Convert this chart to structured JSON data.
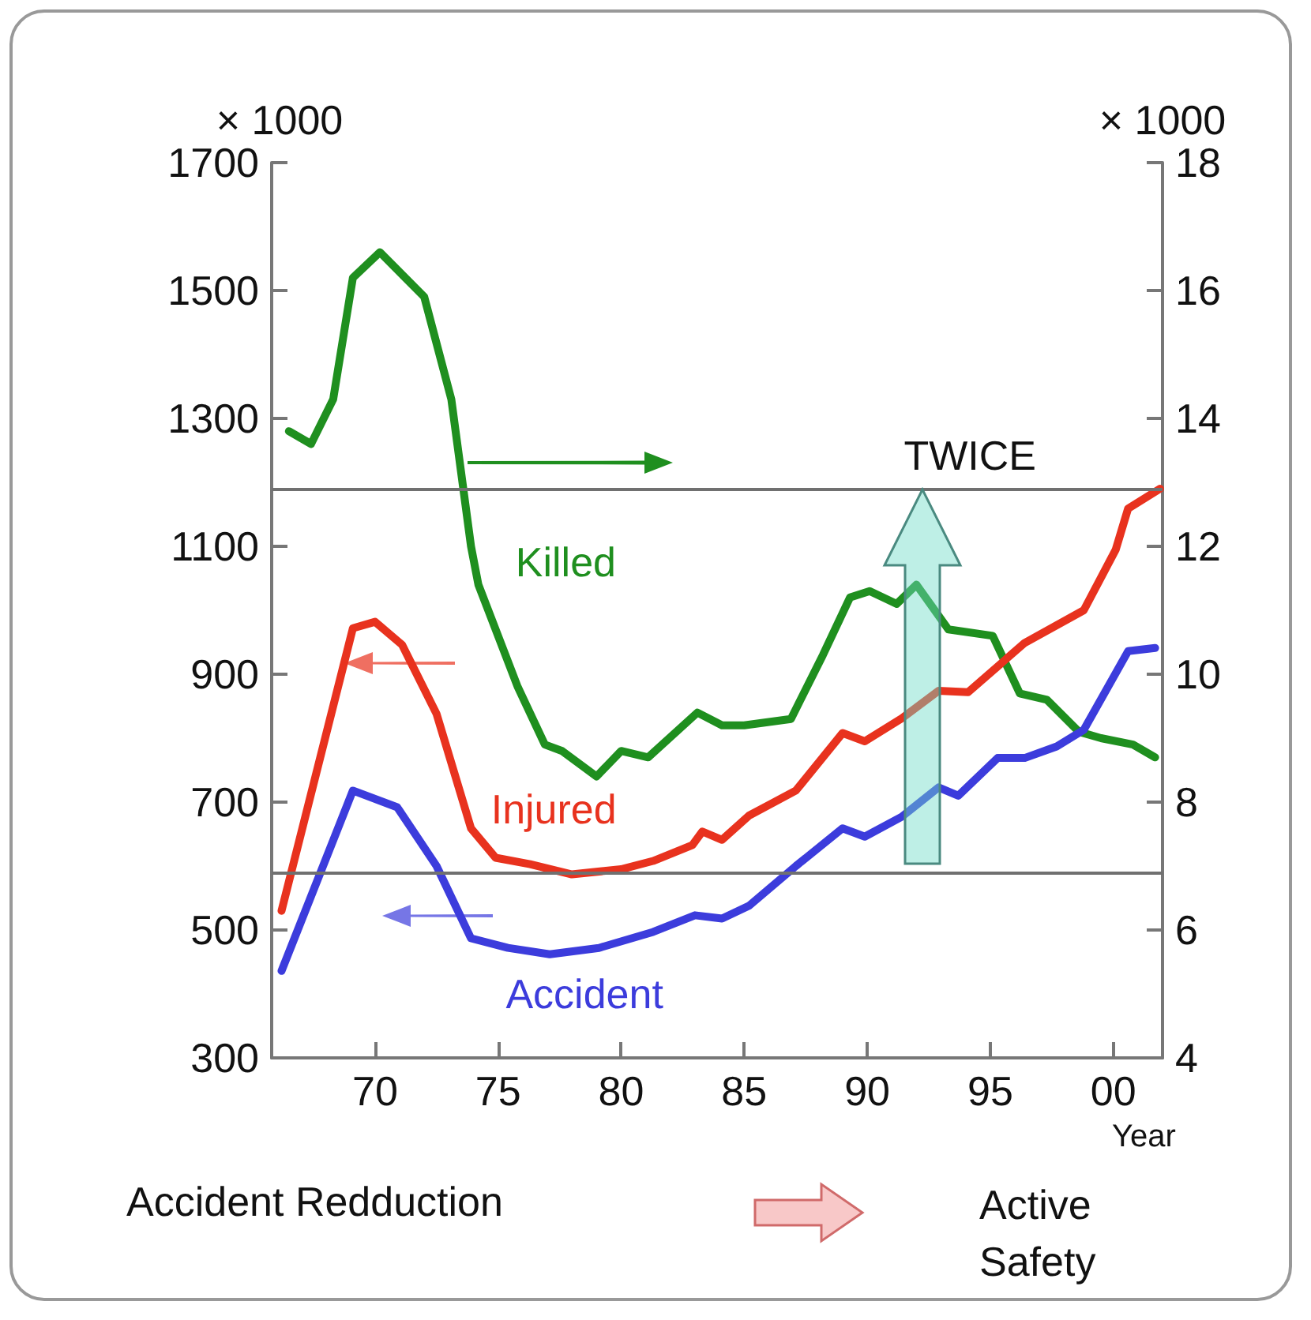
{
  "chart_data": {
    "type": "line",
    "xlabel": "Year",
    "ylabel": "× 1000",
    "y2label": "× 1000",
    "xlim": [
      1965.8,
      2002
    ],
    "xticks": [
      {
        "value": 1970,
        "label": "70"
      },
      {
        "value": 1975,
        "label": "75"
      },
      {
        "value": 1980,
        "label": "80"
      },
      {
        "value": 1985,
        "label": "85"
      },
      {
        "value": 1990,
        "label": "90"
      },
      {
        "value": 1995,
        "label": "95"
      },
      {
        "value": 2000,
        "label": "00"
      }
    ],
    "ylim": [
      300,
      1700
    ],
    "yticks": [
      300,
      500,
      700,
      900,
      1100,
      1300,
      1500,
      1700
    ],
    "y2lim": [
      4,
      18
    ],
    "y2ticks": [
      4,
      6,
      8,
      10,
      12,
      14,
      16,
      18
    ],
    "series": [
      {
        "name": "Killed",
        "color": "#1f8f1f",
        "axis": "y2",
        "x": [
          1966.5,
          1967.4,
          1968.3,
          1969.1,
          1970.2,
          1972.0,
          1973.1,
          1973.9,
          1974.2,
          1975.8,
          1976.9,
          1977.6,
          1979.0,
          1980.0,
          1981.1,
          1983.1,
          1984.1,
          1985.0,
          1986.9,
          1988.2,
          1989.3,
          1990.1,
          1991.2,
          1992.0,
          1993.3,
          1995.1,
          1996.2,
          1997.3,
          1998.6,
          1999.5,
          2000.8,
          2001.7
        ],
        "values": [
          13.8,
          13.6,
          14.3,
          16.2,
          16.6,
          15.9,
          14.3,
          12.0,
          11.4,
          9.8,
          8.9,
          8.8,
          8.4,
          8.8,
          8.7,
          9.4,
          9.2,
          9.2,
          9.3,
          10.3,
          11.2,
          11.3,
          11.1,
          11.4,
          10.7,
          10.6,
          9.7,
          9.6,
          9.1,
          9.0,
          8.9,
          8.7
        ]
      },
      {
        "name": "Injured",
        "color": "#e8321e",
        "x": [
          1966.2,
          1969.1,
          1970.0,
          1971.1,
          1972.5,
          1973.9,
          1974.9,
          1976.3,
          1978.0,
          1980.0,
          1981.3,
          1982.9,
          1983.3,
          1984.1,
          1985.2,
          1987.1,
          1989.0,
          1989.9,
          1991.4,
          1992.9,
          1994.1,
          1996.4,
          1998.8,
          2000.1,
          2000.6,
          2001.9
        ],
        "values": [
          530,
          972,
          982,
          946,
          838,
          659,
          613,
          603,
          587,
          595,
          608,
          633,
          654,
          641,
          679,
          718,
          808,
          795,
          831,
          874,
          872,
          949,
          1000,
          1095,
          1159,
          1190
        ]
      },
      {
        "name": "Accident",
        "color": "#3c3cdc",
        "x": [
          1966.2,
          1969.1,
          1970.9,
          1972.5,
          1973.9,
          1975.4,
          1977.1,
          1979.1,
          1981.3,
          1983.0,
          1984.1,
          1985.2,
          1987.1,
          1989.0,
          1989.9,
          1991.4,
          1992.9,
          1993.7,
          1995.3,
          1996.4,
          1997.7,
          1998.8,
          2000.6,
          2001.7
        ],
        "values": [
          436,
          718,
          692,
          600,
          487,
          472,
          462,
          472,
          497,
          523,
          518,
          538,
          600,
          659,
          646,
          677,
          723,
          710,
          769,
          769,
          787,
          813,
          936,
          941
        ]
      }
    ],
    "ref_lines": [
      {
        "axis": "y",
        "value": 590,
        "color": "#707070"
      },
      {
        "axis": "y",
        "value": 1190,
        "label": "TWICE",
        "color": "#707070"
      }
    ],
    "annotations": [
      "Accident Redduction",
      "Active Safety"
    ],
    "grid": false,
    "legend": false,
    "marker": "none",
    "line_style": "solid"
  }
}
